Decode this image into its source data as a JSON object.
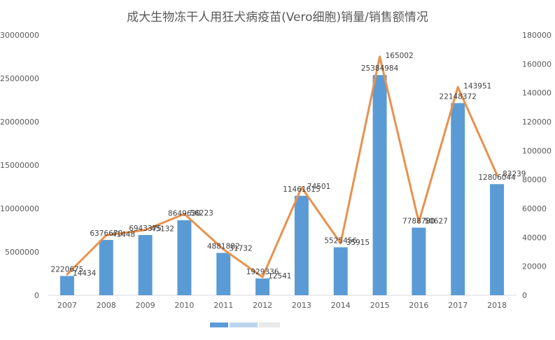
{
  "chart_data": {
    "type": "bar",
    "title": "成大生物冻干人用狂犬病疫苗(Vero细胞)销量/销售额情况",
    "xlabel": "",
    "ylabel": "",
    "categories": [
      "2007",
      "2008",
      "2009",
      "2010",
      "2011",
      "2012",
      "2013",
      "2014",
      "2015",
      "2016",
      "2017",
      "2018"
    ],
    "series": [
      {
        "type": "bar",
        "axis": "left",
        "color": "#5b9bd5",
        "values": [
          2220675,
          6376670,
          6943375,
          8649630,
          4881882,
          1929336,
          11461615,
          5525456,
          25384984,
          7788780,
          22148372,
          12806044
        ],
        "labels": [
          "2220675",
          "6376670",
          "6943375",
          "8649630",
          "4881882",
          "1929336",
          "11461615",
          "5525456",
          "25384984",
          "7788780",
          "22148372",
          "12806044"
        ]
      },
      {
        "type": "line",
        "axis": "right",
        "color": "#e8914d",
        "values": [
          14434,
          41448,
          45132,
          56223,
          31732,
          12541,
          74501,
          35915,
          165002,
          50627,
          143951,
          83239
        ],
        "labels": [
          "14434",
          "41448",
          "45132",
          "56223",
          "31732",
          "12541",
          "74501",
          "35915",
          "165002",
          "50627",
          "143951",
          "83239"
        ]
      }
    ],
    "ylim_left": [
      0,
      30000000
    ],
    "ylim_right": [
      0,
      180000
    ],
    "yticks_left": [
      "0",
      "5000000",
      "10000000",
      "15000000",
      "20000000",
      "25000000",
      "30000000"
    ],
    "yticks_right": [
      "0",
      "20000",
      "40000",
      "60000",
      "80000",
      "100000",
      "120000",
      "140000",
      "160000",
      "180000"
    ],
    "grid": false,
    "legend": "bottom"
  }
}
